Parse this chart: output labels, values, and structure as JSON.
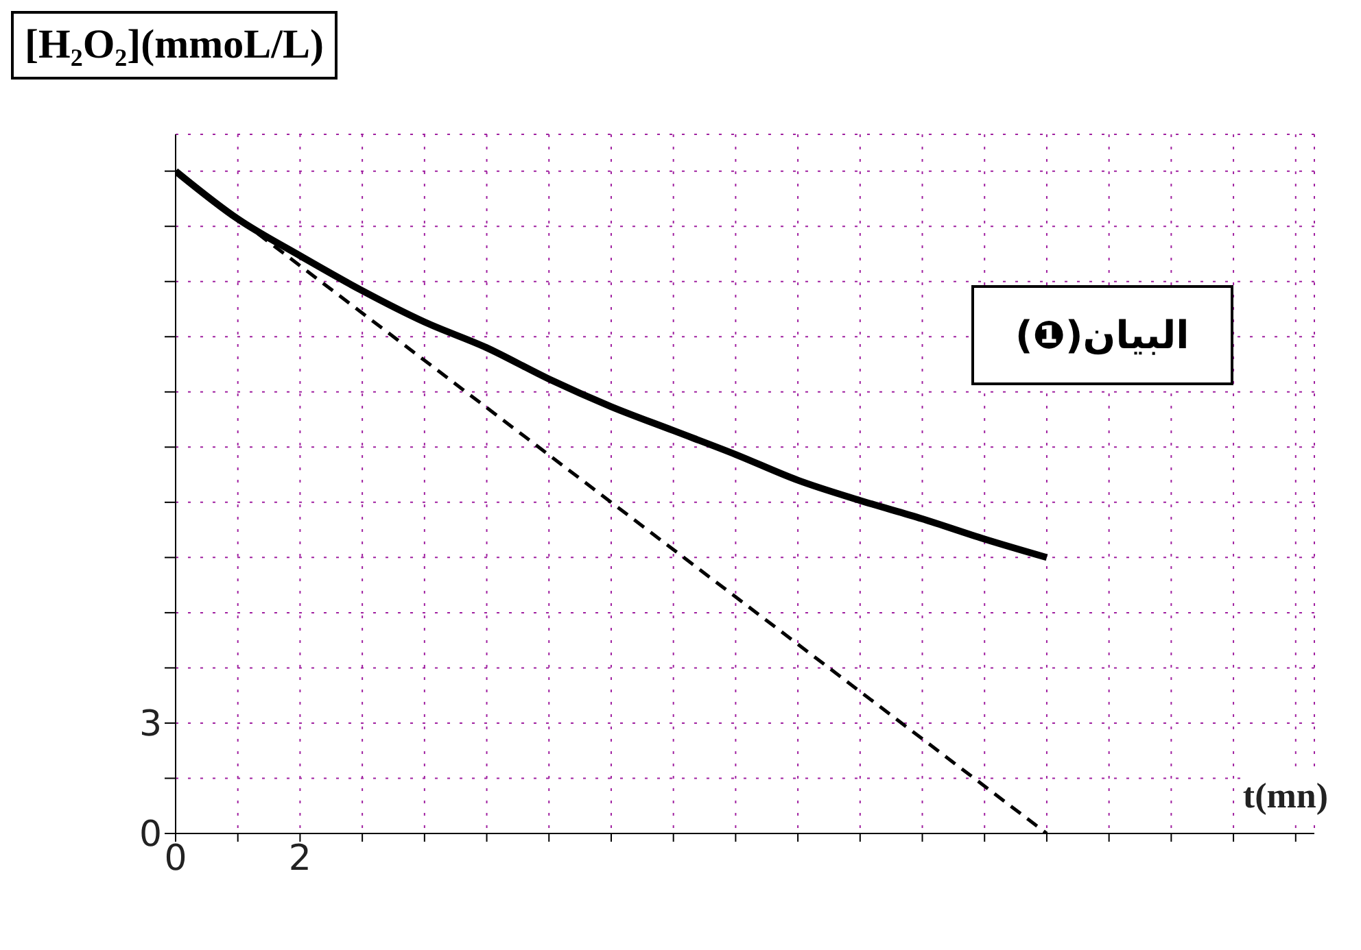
{
  "chart_data": {
    "type": "line",
    "ylabel": "[H₂O₂](mmoL/L)",
    "xlabel": "t(mn)",
    "annotations": [
      "البيان(❶)"
    ],
    "series": [
      {
        "color": "#000000",
        "line_style": "solid",
        "x": [
          0,
          1,
          2,
          3,
          4,
          5,
          6,
          7,
          8,
          9,
          10,
          11,
          12,
          13,
          14
        ],
        "values": [
          18,
          16.7,
          15.7,
          14.75,
          13.9,
          13.2,
          12.35,
          11.6,
          10.95,
          10.3,
          9.6,
          9.05,
          8.55,
          8,
          7.5
        ]
      },
      {
        "color": "#000000",
        "line_style": "dashed",
        "x": [
          0,
          14
        ],
        "values": [
          18,
          0
        ]
      }
    ],
    "xlim": [
      0,
      18.3
    ],
    "ylim": [
      0,
      19
    ],
    "xticks": [
      0,
      {
        "value": 1,
        "label": null
      },
      {
        "value": 2,
        "label": "2"
      },
      {
        "value": 3,
        "label": null
      },
      {
        "value": 4,
        "label": null
      },
      {
        "value": 5,
        "label": null
      },
      {
        "value": 6,
        "label": null
      },
      {
        "value": 7,
        "label": null
      },
      {
        "value": 8,
        "label": null
      },
      {
        "value": 9,
        "label": null
      },
      {
        "value": 10,
        "label": null
      },
      {
        "value": 11,
        "label": null
      },
      {
        "value": 12,
        "label": null
      },
      {
        "value": 13,
        "label": null
      },
      {
        "value": 14,
        "label": null
      },
      {
        "value": 15,
        "label": null
      },
      {
        "value": 16,
        "label": null
      },
      {
        "value": 17,
        "label": null
      },
      {
        "value": 18,
        "label": null
      }
    ],
    "yticks": [
      0,
      {
        "value": 1.5,
        "label": null
      },
      3,
      {
        "value": 4.5,
        "label": null
      },
      {
        "value": 6,
        "label": null
      },
      {
        "value": 7.5,
        "label": null
      },
      {
        "value": 9,
        "label": null
      },
      {
        "value": 10.5,
        "label": null
      },
      {
        "value": 12,
        "label": null
      },
      {
        "value": 13.5,
        "label": null
      },
      {
        "value": 15,
        "label": null
      },
      {
        "value": 16.5,
        "label": null
      },
      {
        "value": 18,
        "label": null
      }
    ],
    "grid": true,
    "legend": false,
    "marker": "none"
  }
}
